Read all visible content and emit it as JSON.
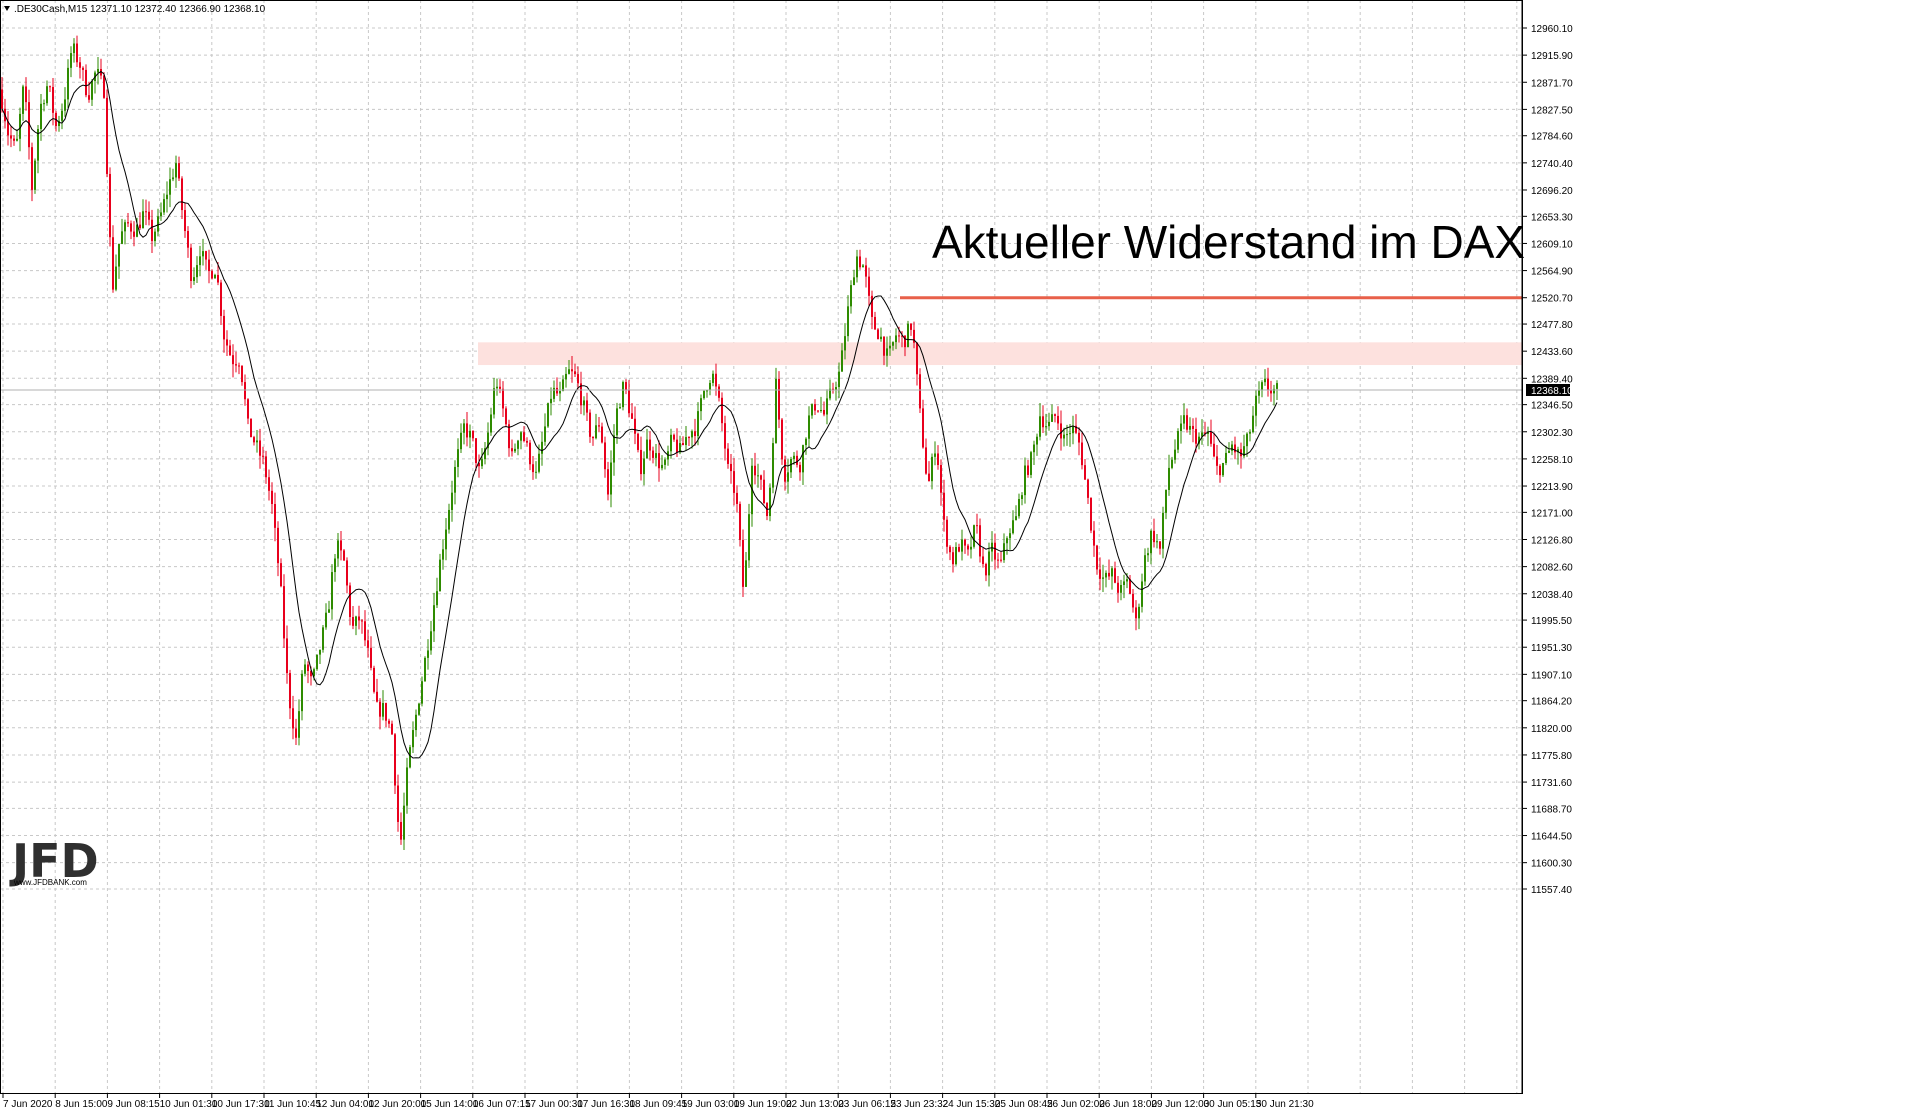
{
  "header": {
    "symbol": ".DE30Cash,M15",
    "ohlc": "12371.10 12372.40 12366.90 12368.10"
  },
  "annotation": "Aktueller Widerstand im DAX",
  "logo": {
    "text": "JFD",
    "url": "www.JFDBANK.com"
  },
  "chart_data": {
    "type": "candlestick",
    "title": "",
    "xlabel": "",
    "ylabel": "",
    "ylim": [
      11557.4,
      12982
    ],
    "grid": true,
    "current_price": "12368.10",
    "y_ticks": [
      "12960.10",
      "12915.90",
      "12871.70",
      "12827.50",
      "12784.60",
      "12740.40",
      "12696.20",
      "12653.30",
      "12609.10",
      "12564.90",
      "12520.70",
      "12477.80",
      "12433.60",
      "12389.40",
      "12346.50",
      "12302.30",
      "12258.10",
      "12213.90",
      "12171.00",
      "12126.80",
      "12082.60",
      "12038.40",
      "11995.50",
      "11951.30",
      "11907.10",
      "11864.20",
      "11820.00",
      "11775.80",
      "11731.60",
      "11688.70",
      "11644.50",
      "11600.30",
      "11557.40"
    ],
    "x_ticks": [
      "7 Jun 2020",
      "8 Jun 15:00",
      "9 Jun 08:15",
      "10 Jun 01:30",
      "10 Jun 17:30",
      "11 Jun 10:45",
      "12 Jun 04:00",
      "12 Jun 20:00",
      "15 Jun 14:00",
      "16 Jun 07:15",
      "17 Jun 00:30",
      "17 Jun 16:30",
      "18 Jun 09:45",
      "19 Jun 03:00",
      "19 Jun 19:00",
      "22 Jun 13:00",
      "23 Jun 06:15",
      "23 Jun 23:32",
      "24 Jun 15:30",
      "25 Jun 08:45",
      "26 Jun 02:00",
      "26 Jun 18:00",
      "29 Jun 12:00",
      "30 Jun 05:15",
      "30 Jun 21:30"
    ],
    "price_path": [
      [
        0,
        12860
      ],
      [
        8,
        12790
      ],
      [
        16,
        12760
      ],
      [
        24,
        12870
      ],
      [
        32,
        12700
      ],
      [
        40,
        12830
      ],
      [
        48,
        12870
      ],
      [
        56,
        12800
      ],
      [
        64,
        12840
      ],
      [
        72,
        12930
      ],
      [
        80,
        12900
      ],
      [
        88,
        12850
      ],
      [
        96,
        12890
      ],
      [
        104,
        12860
      ],
      [
        112,
        12530
      ],
      [
        120,
        12620
      ],
      [
        128,
        12640
      ],
      [
        136,
        12630
      ],
      [
        144,
        12660
      ],
      [
        152,
        12620
      ],
      [
        160,
        12650
      ],
      [
        168,
        12700
      ],
      [
        176,
        12740
      ],
      [
        184,
        12640
      ],
      [
        192,
        12550
      ],
      [
        200,
        12600
      ],
      [
        208,
        12560
      ],
      [
        216,
        12570
      ],
      [
        224,
        12460
      ],
      [
        232,
        12420
      ],
      [
        240,
        12420
      ],
      [
        248,
        12310
      ],
      [
        256,
        12280
      ],
      [
        264,
        12250
      ],
      [
        272,
        12180
      ],
      [
        280,
        12060
      ],
      [
        288,
        11880
      ],
      [
        296,
        11800
      ],
      [
        304,
        11930
      ],
      [
        312,
        11890
      ],
      [
        320,
        11950
      ],
      [
        328,
        12010
      ],
      [
        336,
        12120
      ],
      [
        344,
        12090
      ],
      [
        352,
        11980
      ],
      [
        360,
        12000
      ],
      [
        368,
        11940
      ],
      [
        376,
        11850
      ],
      [
        384,
        11850
      ],
      [
        392,
        11810
      ],
      [
        400,
        11620
      ],
      [
        408,
        11760
      ],
      [
        416,
        11840
      ],
      [
        424,
        11920
      ],
      [
        432,
        12000
      ],
      [
        440,
        12090
      ],
      [
        448,
        12170
      ],
      [
        456,
        12250
      ],
      [
        464,
        12310
      ],
      [
        472,
        12290
      ],
      [
        480,
        12230
      ],
      [
        488,
        12300
      ],
      [
        496,
        12390
      ],
      [
        504,
        12330
      ],
      [
        512,
        12260
      ],
      [
        520,
        12310
      ],
      [
        528,
        12270
      ],
      [
        536,
        12230
      ],
      [
        544,
        12300
      ],
      [
        552,
        12370
      ],
      [
        560,
        12360
      ],
      [
        568,
        12400
      ],
      [
        576,
        12390
      ],
      [
        584,
        12340
      ],
      [
        592,
        12290
      ],
      [
        600,
        12320
      ],
      [
        608,
        12200
      ],
      [
        616,
        12330
      ],
      [
        624,
        12380
      ],
      [
        632,
        12320
      ],
      [
        640,
        12240
      ],
      [
        648,
        12290
      ],
      [
        656,
        12260
      ],
      [
        664,
        12240
      ],
      [
        672,
        12290
      ],
      [
        680,
        12270
      ],
      [
        688,
        12300
      ],
      [
        696,
        12310
      ],
      [
        704,
        12370
      ],
      [
        712,
        12400
      ],
      [
        720,
        12340
      ],
      [
        728,
        12240
      ],
      [
        736,
        12200
      ],
      [
        744,
        12030
      ],
      [
        752,
        12260
      ],
      [
        760,
        12220
      ],
      [
        768,
        12160
      ],
      [
        776,
        12380
      ],
      [
        784,
        12230
      ],
      [
        792,
        12260
      ],
      [
        800,
        12250
      ],
      [
        808,
        12320
      ],
      [
        816,
        12350
      ],
      [
        824,
        12330
      ],
      [
        832,
        12370
      ],
      [
        840,
        12400
      ],
      [
        848,
        12500
      ],
      [
        856,
        12590
      ],
      [
        864,
        12570
      ],
      [
        872,
        12480
      ],
      [
        880,
        12460
      ],
      [
        888,
        12420
      ],
      [
        896,
        12460
      ],
      [
        904,
        12450
      ],
      [
        912,
        12480
      ],
      [
        920,
        12330
      ],
      [
        928,
        12210
      ],
      [
        936,
        12290
      ],
      [
        944,
        12150
      ],
      [
        952,
        12090
      ],
      [
        960,
        12120
      ],
      [
        968,
        12100
      ],
      [
        976,
        12150
      ],
      [
        984,
        12070
      ],
      [
        992,
        12110
      ],
      [
        1000,
        12080
      ],
      [
        1008,
        12140
      ],
      [
        1016,
        12160
      ],
      [
        1024,
        12230
      ],
      [
        1032,
        12260
      ],
      [
        1040,
        12330
      ],
      [
        1048,
        12310
      ],
      [
        1056,
        12330
      ],
      [
        1064,
        12290
      ],
      [
        1072,
        12310
      ],
      [
        1080,
        12280
      ],
      [
        1088,
        12190
      ],
      [
        1096,
        12090
      ],
      [
        1104,
        12060
      ],
      [
        1112,
        12070
      ],
      [
        1120,
        12040
      ],
      [
        1128,
        12060
      ],
      [
        1136,
        11990
      ],
      [
        1144,
        12090
      ],
      [
        1152,
        12140
      ],
      [
        1160,
        12110
      ],
      [
        1168,
        12240
      ],
      [
        1176,
        12280
      ],
      [
        1184,
        12320
      ],
      [
        1192,
        12300
      ],
      [
        1200,
        12290
      ],
      [
        1208,
        12300
      ],
      [
        1216,
        12240
      ],
      [
        1224,
        12250
      ],
      [
        1232,
        12280
      ],
      [
        1240,
        12260
      ],
      [
        1248,
        12290
      ],
      [
        1256,
        12350
      ],
      [
        1264,
        12380
      ],
      [
        1272,
        12370
      ],
      [
        1280,
        12368
      ]
    ],
    "moving_average": {
      "period": "unlabeled",
      "color": "#000000"
    },
    "resistance_line": {
      "value": 12520.7,
      "color": "#e8604a"
    },
    "resistance_zone": {
      "low": 12411,
      "high": 12448,
      "color": "#fde1de"
    },
    "colors": {
      "up": "#2e8b00",
      "down": "#e8001c",
      "grid": "#c8c8c8"
    }
  }
}
